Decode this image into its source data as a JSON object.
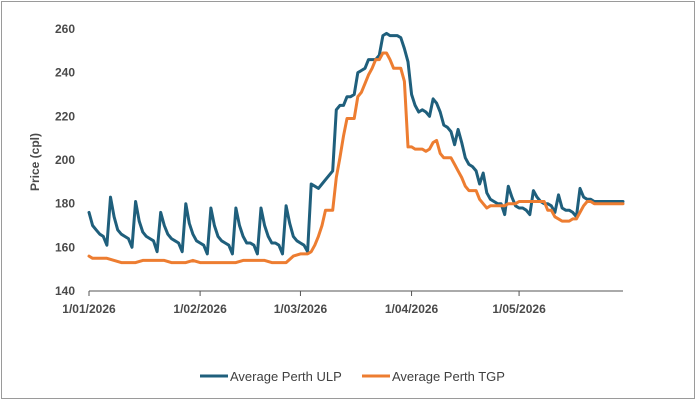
{
  "chart_data": {
    "type": "line",
    "title": "",
    "xlabel": "",
    "ylabel": "Price (cpl)",
    "ylim": [
      140,
      260
    ],
    "yticks": [
      140,
      160,
      180,
      200,
      220,
      240,
      260
    ],
    "xticks": [
      "1/01/2026",
      "1/02/2026",
      "1/03/2026",
      "1/04/2026",
      "1/05/2026"
    ],
    "xtick_days": [
      0,
      31,
      59,
      90,
      120
    ],
    "xrange_days": [
      0,
      149
    ],
    "grid": false,
    "legend_position": "bottom",
    "series": [
      {
        "name": "Average Perth ULP",
        "color": "#1f5f7c",
        "points": [
          [
            0,
            176
          ],
          [
            1,
            170
          ],
          [
            2,
            168
          ],
          [
            3,
            166
          ],
          [
            4,
            165
          ],
          [
            5,
            161
          ],
          [
            6,
            183
          ],
          [
            7,
            174
          ],
          [
            8,
            168
          ],
          [
            9,
            166
          ],
          [
            10,
            165
          ],
          [
            11,
            164
          ],
          [
            12,
            160
          ],
          [
            13,
            181
          ],
          [
            14,
            172
          ],
          [
            15,
            167
          ],
          [
            16,
            165
          ],
          [
            17,
            164
          ],
          [
            18,
            163
          ],
          [
            19,
            158
          ],
          [
            20,
            176
          ],
          [
            21,
            170
          ],
          [
            22,
            166
          ],
          [
            23,
            164
          ],
          [
            24,
            163
          ],
          [
            25,
            162
          ],
          [
            26,
            158
          ],
          [
            27,
            180
          ],
          [
            28,
            171
          ],
          [
            29,
            166
          ],
          [
            30,
            163
          ],
          [
            31,
            162
          ],
          [
            32,
            161
          ],
          [
            33,
            157
          ],
          [
            34,
            178
          ],
          [
            35,
            170
          ],
          [
            36,
            165
          ],
          [
            37,
            163
          ],
          [
            38,
            162
          ],
          [
            39,
            161
          ],
          [
            40,
            157
          ],
          [
            41,
            178
          ],
          [
            42,
            170
          ],
          [
            43,
            165
          ],
          [
            44,
            162
          ],
          [
            45,
            162
          ],
          [
            46,
            161
          ],
          [
            47,
            157
          ],
          [
            48,
            178
          ],
          [
            49,
            170
          ],
          [
            50,
            165
          ],
          [
            51,
            162
          ],
          [
            52,
            162
          ],
          [
            53,
            161
          ],
          [
            54,
            157
          ],
          [
            55,
            179
          ],
          [
            56,
            171
          ],
          [
            57,
            165
          ],
          [
            58,
            163
          ],
          [
            59,
            162
          ],
          [
            60,
            161
          ],
          [
            61,
            158
          ],
          [
            62,
            189
          ],
          [
            63,
            188
          ],
          [
            64,
            187
          ],
          [
            65,
            189
          ],
          [
            66,
            191
          ],
          [
            67,
            193
          ],
          [
            68,
            195
          ],
          [
            69,
            223
          ],
          [
            70,
            225
          ],
          [
            71,
            225
          ],
          [
            72,
            229
          ],
          [
            73,
            229
          ],
          [
            74,
            230
          ],
          [
            75,
            240
          ],
          [
            76,
            241
          ],
          [
            77,
            242
          ],
          [
            78,
            246
          ],
          [
            79,
            246
          ],
          [
            80,
            246
          ],
          [
            81,
            248
          ],
          [
            82,
            257
          ],
          [
            83,
            258
          ],
          [
            84,
            257
          ],
          [
            85,
            257
          ],
          [
            86,
            257
          ],
          [
            87,
            256
          ],
          [
            88,
            251
          ],
          [
            89,
            245
          ],
          [
            90,
            230
          ],
          [
            91,
            225
          ],
          [
            92,
            222
          ],
          [
            93,
            223
          ],
          [
            94,
            222
          ],
          [
            95,
            220
          ],
          [
            96,
            228
          ],
          [
            97,
            226
          ],
          [
            98,
            222
          ],
          [
            99,
            216
          ],
          [
            100,
            215
          ],
          [
            101,
            213
          ],
          [
            102,
            207
          ],
          [
            103,
            214
          ],
          [
            104,
            208
          ],
          [
            105,
            201
          ],
          [
            106,
            198
          ],
          [
            107,
            197
          ],
          [
            108,
            195
          ],
          [
            109,
            189
          ],
          [
            110,
            194
          ],
          [
            111,
            185
          ],
          [
            112,
            182
          ],
          [
            113,
            181
          ],
          [
            114,
            180
          ],
          [
            115,
            180
          ],
          [
            116,
            175
          ],
          [
            117,
            188
          ],
          [
            118,
            183
          ],
          [
            119,
            179
          ],
          [
            120,
            178
          ],
          [
            121,
            178
          ],
          [
            122,
            177
          ],
          [
            123,
            175
          ],
          [
            124,
            186
          ],
          [
            125,
            183
          ],
          [
            126,
            181
          ],
          [
            127,
            180
          ],
          [
            128,
            180
          ],
          [
            129,
            179
          ],
          [
            130,
            176
          ],
          [
            131,
            184
          ],
          [
            132,
            178
          ],
          [
            133,
            177
          ],
          [
            134,
            177
          ],
          [
            135,
            176
          ],
          [
            136,
            174
          ],
          [
            137,
            187
          ],
          [
            138,
            183
          ],
          [
            139,
            182
          ],
          [
            140,
            182
          ],
          [
            141,
            181
          ],
          [
            149,
            181
          ]
        ]
      },
      {
        "name": "Average Perth TGP",
        "color": "#ed7d31",
        "points": [
          [
            0,
            156
          ],
          [
            1,
            155
          ],
          [
            3,
            155
          ],
          [
            5,
            155
          ],
          [
            7,
            154
          ],
          [
            9,
            153
          ],
          [
            11,
            153
          ],
          [
            13,
            153
          ],
          [
            15,
            154
          ],
          [
            17,
            154
          ],
          [
            19,
            154
          ],
          [
            21,
            154
          ],
          [
            23,
            153
          ],
          [
            25,
            153
          ],
          [
            27,
            153
          ],
          [
            29,
            154
          ],
          [
            31,
            153
          ],
          [
            33,
            153
          ],
          [
            35,
            153
          ],
          [
            37,
            153
          ],
          [
            39,
            153
          ],
          [
            41,
            153
          ],
          [
            43,
            154
          ],
          [
            45,
            154
          ],
          [
            47,
            154
          ],
          [
            49,
            154
          ],
          [
            51,
            153
          ],
          [
            53,
            153
          ],
          [
            55,
            153
          ],
          [
            57,
            156
          ],
          [
            59,
            157
          ],
          [
            61,
            157
          ],
          [
            62,
            158
          ],
          [
            63,
            161
          ],
          [
            64,
            165
          ],
          [
            65,
            170
          ],
          [
            66,
            177
          ],
          [
            67,
            177
          ],
          [
            68,
            177
          ],
          [
            69,
            192
          ],
          [
            70,
            201
          ],
          [
            71,
            211
          ],
          [
            72,
            219
          ],
          [
            73,
            219
          ],
          [
            74,
            219
          ],
          [
            75,
            229
          ],
          [
            76,
            231
          ],
          [
            77,
            235
          ],
          [
            78,
            239
          ],
          [
            79,
            242
          ],
          [
            80,
            246
          ],
          [
            81,
            246
          ],
          [
            82,
            249
          ],
          [
            83,
            249
          ],
          [
            84,
            246
          ],
          [
            85,
            242
          ],
          [
            86,
            242
          ],
          [
            87,
            242
          ],
          [
            88,
            236
          ],
          [
            89,
            206
          ],
          [
            90,
            206
          ],
          [
            91,
            205
          ],
          [
            92,
            205
          ],
          [
            93,
            205
          ],
          [
            94,
            204
          ],
          [
            95,
            205
          ],
          [
            96,
            208
          ],
          [
            97,
            209
          ],
          [
            98,
            203
          ],
          [
            99,
            201
          ],
          [
            100,
            201
          ],
          [
            101,
            201
          ],
          [
            102,
            198
          ],
          [
            103,
            195
          ],
          [
            104,
            192
          ],
          [
            105,
            188
          ],
          [
            106,
            186
          ],
          [
            107,
            186
          ],
          [
            108,
            186
          ],
          [
            109,
            182
          ],
          [
            110,
            180
          ],
          [
            111,
            178
          ],
          [
            112,
            179
          ],
          [
            113,
            179
          ],
          [
            114,
            179
          ],
          [
            115,
            179
          ],
          [
            116,
            179
          ],
          [
            117,
            180
          ],
          [
            118,
            180
          ],
          [
            119,
            180
          ],
          [
            120,
            181
          ],
          [
            121,
            181
          ],
          [
            122,
            181
          ],
          [
            123,
            181
          ],
          [
            124,
            181
          ],
          [
            125,
            181
          ],
          [
            126,
            181
          ],
          [
            127,
            181
          ],
          [
            128,
            177
          ],
          [
            129,
            177
          ],
          [
            130,
            174
          ],
          [
            131,
            173
          ],
          [
            132,
            172
          ],
          [
            133,
            172
          ],
          [
            134,
            172
          ],
          [
            135,
            173
          ],
          [
            136,
            173
          ],
          [
            137,
            176
          ],
          [
            138,
            179
          ],
          [
            139,
            181
          ],
          [
            140,
            181
          ],
          [
            141,
            180
          ],
          [
            149,
            180
          ]
        ]
      }
    ]
  }
}
